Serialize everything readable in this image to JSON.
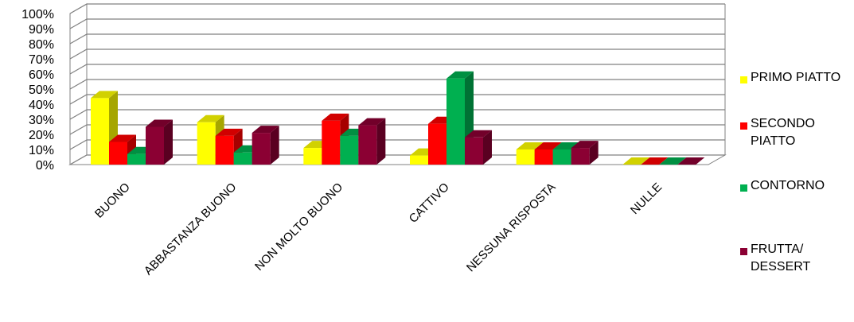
{
  "chart_data": {
    "type": "bar",
    "categories": [
      "BUONO",
      "ABBASTANZA BUONO",
      "NON MOLTO BUONO",
      "CATTIVO",
      "NESSUNA RISPOSTA",
      "NULLE"
    ],
    "series": [
      {
        "name": "PRIMO PIATTO",
        "color": "#FFFF00",
        "values": [
          44,
          28,
          11,
          6,
          10,
          0
        ]
      },
      {
        "name": "SECONDO PIATTO",
        "color": "#FF0000",
        "values": [
          15,
          19,
          29,
          27,
          10,
          0
        ]
      },
      {
        "name": "CONTORNO",
        "color": "#00B050",
        "values": [
          7,
          8,
          19,
          57,
          10,
          0
        ]
      },
      {
        "name": "FRUTTA/ DESSERT",
        "color": "#8B0033",
        "values": [
          25,
          21,
          26,
          18,
          11,
          0
        ]
      }
    ],
    "yticks": [
      "0%",
      "10%",
      "20%",
      "30%",
      "40%",
      "50%",
      "60%",
      "70%",
      "80%",
      "90%",
      "100%"
    ],
    "ylim": [
      0,
      100
    ],
    "unit": "%",
    "grid": true,
    "legend_position": "right",
    "three_d": true
  }
}
